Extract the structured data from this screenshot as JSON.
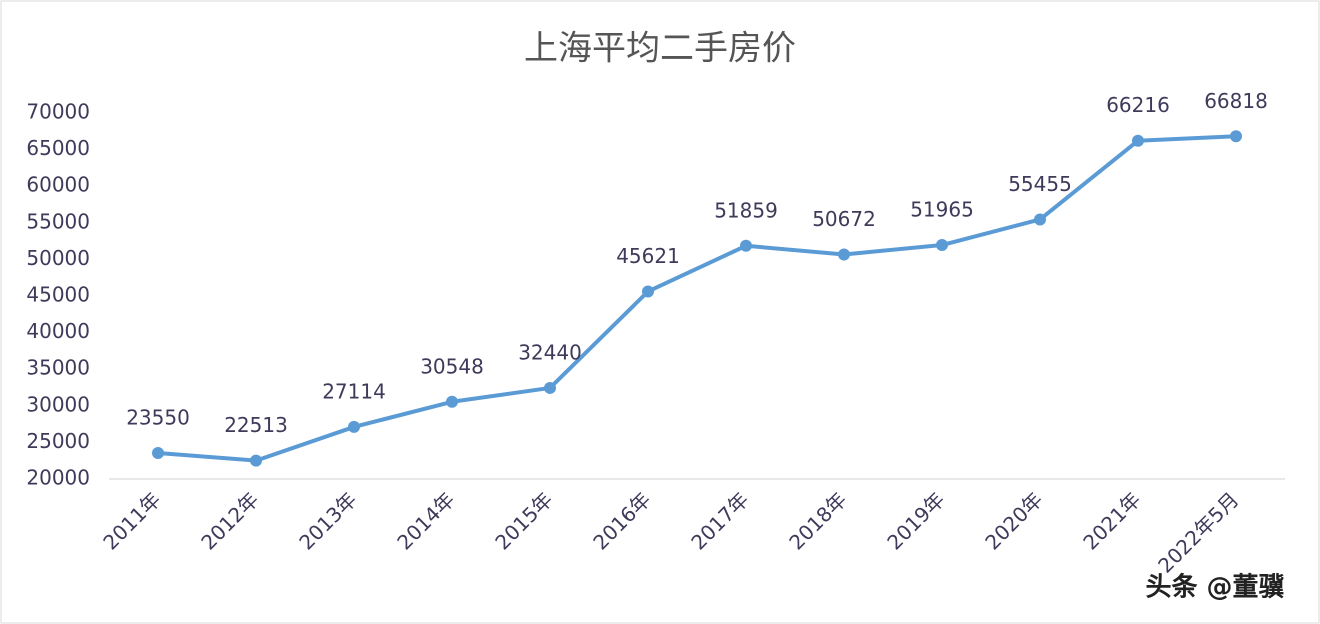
{
  "chart_data": {
    "type": "line",
    "title": "上海平均二手房价",
    "categories": [
      "2011年",
      "2012年",
      "2013年",
      "2014年",
      "2015年",
      "2016年",
      "2017年",
      "2018年",
      "2019年",
      "2020年",
      "2021年",
      "2022年5月"
    ],
    "values": [
      23550,
      22513,
      27114,
      30548,
      32440,
      45621,
      51859,
      50672,
      51965,
      55455,
      66216,
      66818
    ],
    "color": "#5b9bd5",
    "ylim": [
      20000,
      70000
    ],
    "yticks": [
      20000,
      25000,
      30000,
      35000,
      40000,
      45000,
      50000,
      55000,
      60000,
      65000,
      70000
    ],
    "grid": false,
    "annotation": "头条 @董骥"
  }
}
